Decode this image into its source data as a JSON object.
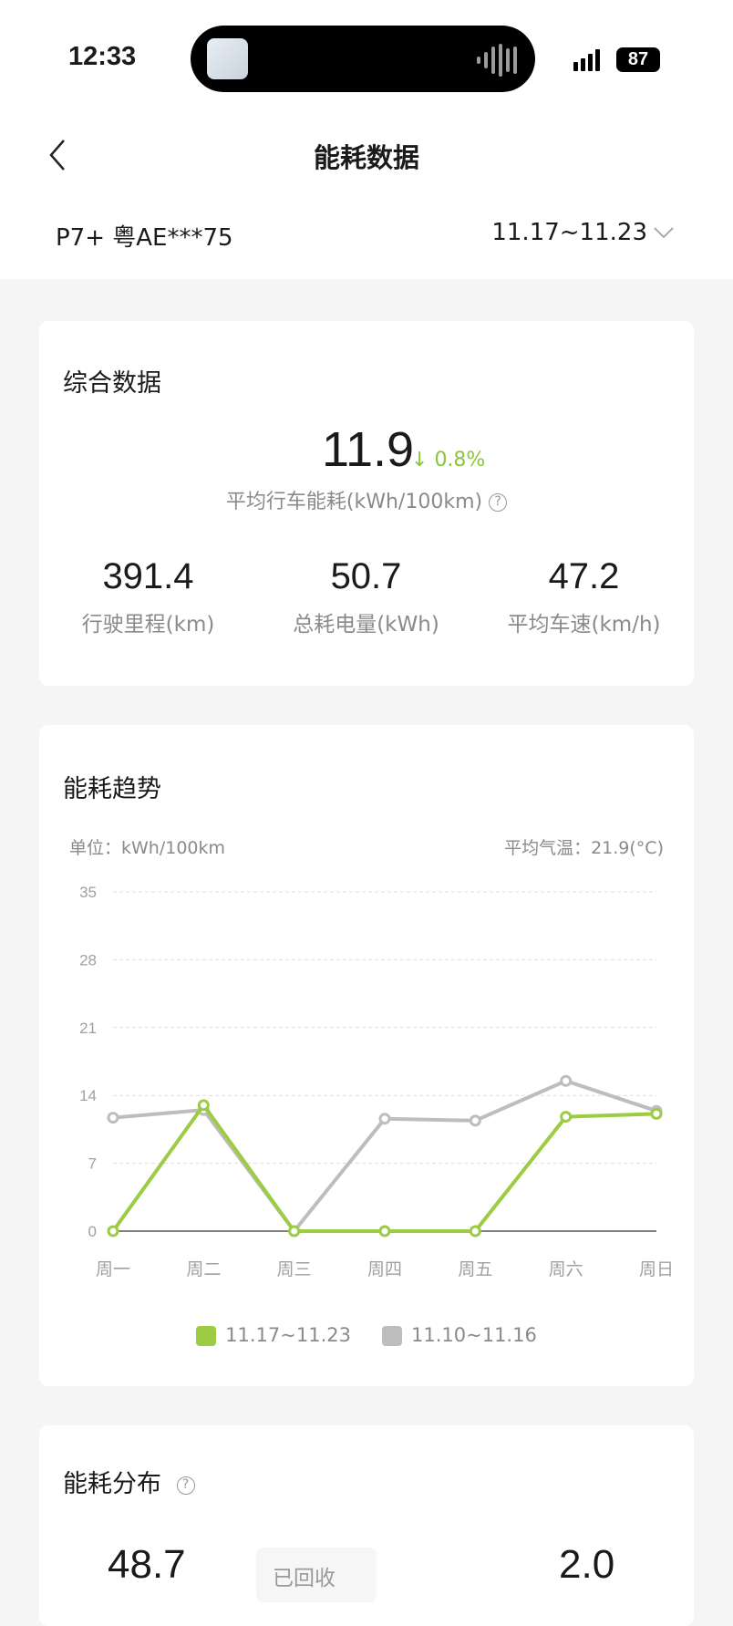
{
  "status_bar": {
    "time": "12:33",
    "battery": "87"
  },
  "nav": {
    "title": "能耗数据"
  },
  "vehicle": {
    "name": "P7+ 粤AE***75",
    "date_range": "11.17~11.23"
  },
  "summary": {
    "title": "综合数据",
    "avg_value": "11.9",
    "change": "0.8%",
    "change_direction": "down",
    "avg_label": "平均行车能耗(kWh/100km)",
    "stats": [
      {
        "value": "391.4",
        "label": "行驶里程(km)"
      },
      {
        "value": "50.7",
        "label": "总耗电量(kWh)"
      },
      {
        "value": "47.2",
        "label": "平均车速(km/h)"
      }
    ]
  },
  "trend": {
    "title": "能耗趋势",
    "unit": "单位：kWh/100km",
    "temp": "平均气温：21.9(°C)"
  },
  "chart_data": {
    "type": "line",
    "categories": [
      "周一",
      "周二",
      "周三",
      "周四",
      "周五",
      "周六",
      "周日"
    ],
    "yticks": [
      "0",
      "7",
      "14",
      "21",
      "28",
      "35"
    ],
    "ylim": [
      0,
      35
    ],
    "grid": true,
    "legend_placement": "bottom",
    "series": [
      {
        "name": "11.17~11.23",
        "color": "#9ccc44",
        "values": [
          0,
          13.0,
          0,
          0,
          0,
          11.8,
          12.1
        ]
      },
      {
        "name": "11.10~11.16",
        "color": "#bdbdbd",
        "values": [
          11.7,
          12.5,
          0,
          11.6,
          11.4,
          15.5,
          12.4
        ]
      }
    ]
  },
  "distribution": {
    "title": "能耗分布",
    "left_value": "48.7",
    "tooltip": "已回收",
    "right_value": "2.0"
  },
  "colors": {
    "accent": "#9ccc44",
    "secondary": "#bdbdbd",
    "background": "#f5f5f5"
  }
}
